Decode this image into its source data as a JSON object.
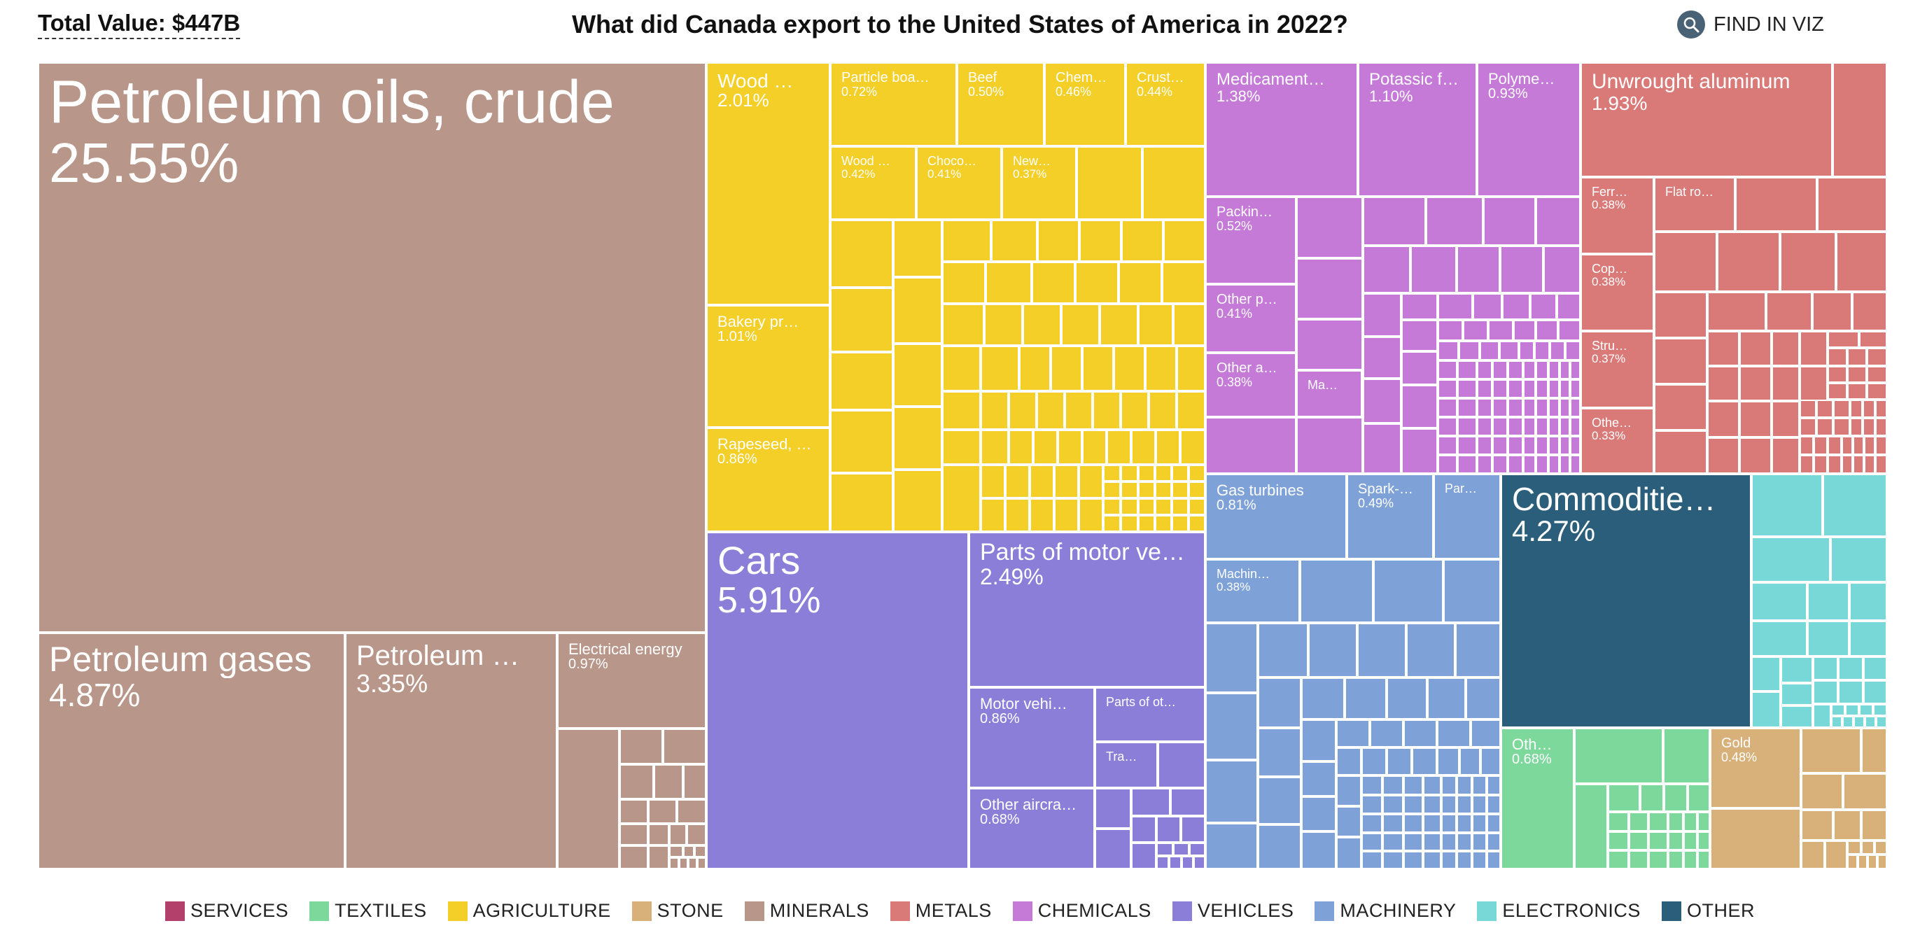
{
  "header": {
    "total_value": "Total Value: $447B",
    "title": "What did Canada export to the United States of America in 2022?",
    "find_label": "FIND IN VIZ",
    "find_icon": "search-icon"
  },
  "colors": {
    "SERVICES": "#b33f6b",
    "TEXTILES": "#7dd89c",
    "AGRICULTURE": "#f3cf27",
    "STONE": "#d8b07a",
    "MINERALS": "#b89689",
    "METALS": "#d97a78",
    "CHEMICALS": "#c57ad8",
    "VEHICLES": "#8a7ed8",
    "MACHINERY": "#7ea1d8",
    "ELECTRONICS": "#78d8d8",
    "OTHER": "#2a5e7a"
  },
  "legend": [
    {
      "label": "SERVICES",
      "sector": "SERVICES"
    },
    {
      "label": "TEXTILES",
      "sector": "TEXTILES"
    },
    {
      "label": "AGRICULTURE",
      "sector": "AGRICULTURE"
    },
    {
      "label": "STONE",
      "sector": "STONE"
    },
    {
      "label": "MINERALS",
      "sector": "MINERALS"
    },
    {
      "label": "METALS",
      "sector": "METALS"
    },
    {
      "label": "CHEMICALS",
      "sector": "CHEMICALS"
    },
    {
      "label": "VEHICLES",
      "sector": "VEHICLES"
    },
    {
      "label": "MACHINERY",
      "sector": "MACHINERY"
    },
    {
      "label": "ELECTRONICS",
      "sector": "ELECTRONICS"
    },
    {
      "label": "OTHER",
      "sector": "OTHER"
    }
  ],
  "chart_data": {
    "type": "treemap",
    "title": "What did Canada export to the United States of America in 2022?",
    "total_value": "$447B",
    "unit": "% of total export value",
    "labeled_items": [
      {
        "label": "Petroleum oils, crude",
        "share": 25.55,
        "sector": "MINERALS"
      },
      {
        "label": "Petroleum gases",
        "share": 4.87,
        "sector": "MINERALS"
      },
      {
        "label": "Petroleum …",
        "share": 3.35,
        "sector": "MINERALS"
      },
      {
        "label": "Electrical energy",
        "share": 0.97,
        "sector": "MINERALS"
      },
      {
        "label": "Wood …",
        "share": 2.01,
        "sector": "AGRICULTURE"
      },
      {
        "label": "Particle boa…",
        "share": 0.72,
        "sector": "AGRICULTURE"
      },
      {
        "label": "Beef",
        "share": 0.5,
        "sector": "AGRICULTURE"
      },
      {
        "label": "Chem…",
        "share": 0.46,
        "sector": "AGRICULTURE"
      },
      {
        "label": "Crust…",
        "share": 0.44,
        "sector": "AGRICULTURE"
      },
      {
        "label": "Wood …",
        "share": 0.42,
        "sector": "AGRICULTURE"
      },
      {
        "label": "Choco…",
        "share": 0.41,
        "sector": "AGRICULTURE"
      },
      {
        "label": "New…",
        "share": 0.37,
        "sector": "AGRICULTURE"
      },
      {
        "label": "Bakery pr…",
        "share": 1.01,
        "sector": "AGRICULTURE"
      },
      {
        "label": "Rapeseed, …",
        "share": 0.86,
        "sector": "AGRICULTURE"
      },
      {
        "label": "Cars",
        "share": 5.91,
        "sector": "VEHICLES"
      },
      {
        "label": "Parts of motor ve…",
        "share": 2.49,
        "sector": "VEHICLES"
      },
      {
        "label": "Motor vehi…",
        "share": 0.86,
        "sector": "VEHICLES"
      },
      {
        "label": "Other aircra…",
        "share": 0.68,
        "sector": "VEHICLES"
      },
      {
        "label": "Parts of ot…",
        "share": null,
        "sector": "VEHICLES"
      },
      {
        "label": "Tra…",
        "share": null,
        "sector": "VEHICLES"
      },
      {
        "label": "Medicament…",
        "share": 1.38,
        "sector": "CHEMICALS"
      },
      {
        "label": "Potassic f…",
        "share": 1.1,
        "sector": "CHEMICALS"
      },
      {
        "label": "Polyme…",
        "share": 0.93,
        "sector": "CHEMICALS"
      },
      {
        "label": "Packin…",
        "share": 0.52,
        "sector": "CHEMICALS"
      },
      {
        "label": "Other p…",
        "share": 0.41,
        "sector": "CHEMICALS"
      },
      {
        "label": "Other a…",
        "share": 0.38,
        "sector": "CHEMICALS"
      },
      {
        "label": "Ma…",
        "share": null,
        "sector": "CHEMICALS"
      },
      {
        "label": "Unwrought aluminum",
        "share": 1.93,
        "sector": "METALS"
      },
      {
        "label": "Ferr…",
        "share": 0.38,
        "sector": "METALS"
      },
      {
        "label": "Flat ro…",
        "share": null,
        "sector": "METALS"
      },
      {
        "label": "Cop…",
        "share": 0.38,
        "sector": "METALS"
      },
      {
        "label": "Stru…",
        "share": 0.37,
        "sector": "METALS"
      },
      {
        "label": "Othe…",
        "share": 0.33,
        "sector": "METALS"
      },
      {
        "label": "Gas turbines",
        "share": 0.81,
        "sector": "MACHINERY"
      },
      {
        "label": "Spark-…",
        "share": 0.49,
        "sector": "MACHINERY"
      },
      {
        "label": "Par…",
        "share": null,
        "sector": "MACHINERY"
      },
      {
        "label": "Machin…",
        "share": 0.38,
        "sector": "MACHINERY"
      },
      {
        "label": "Commoditie…",
        "share": 4.27,
        "sector": "OTHER"
      },
      {
        "label": "Oth…",
        "share": 0.68,
        "sector": "TEXTILES"
      },
      {
        "label": "Gold",
        "share": 0.48,
        "sector": "STONE"
      }
    ]
  }
}
